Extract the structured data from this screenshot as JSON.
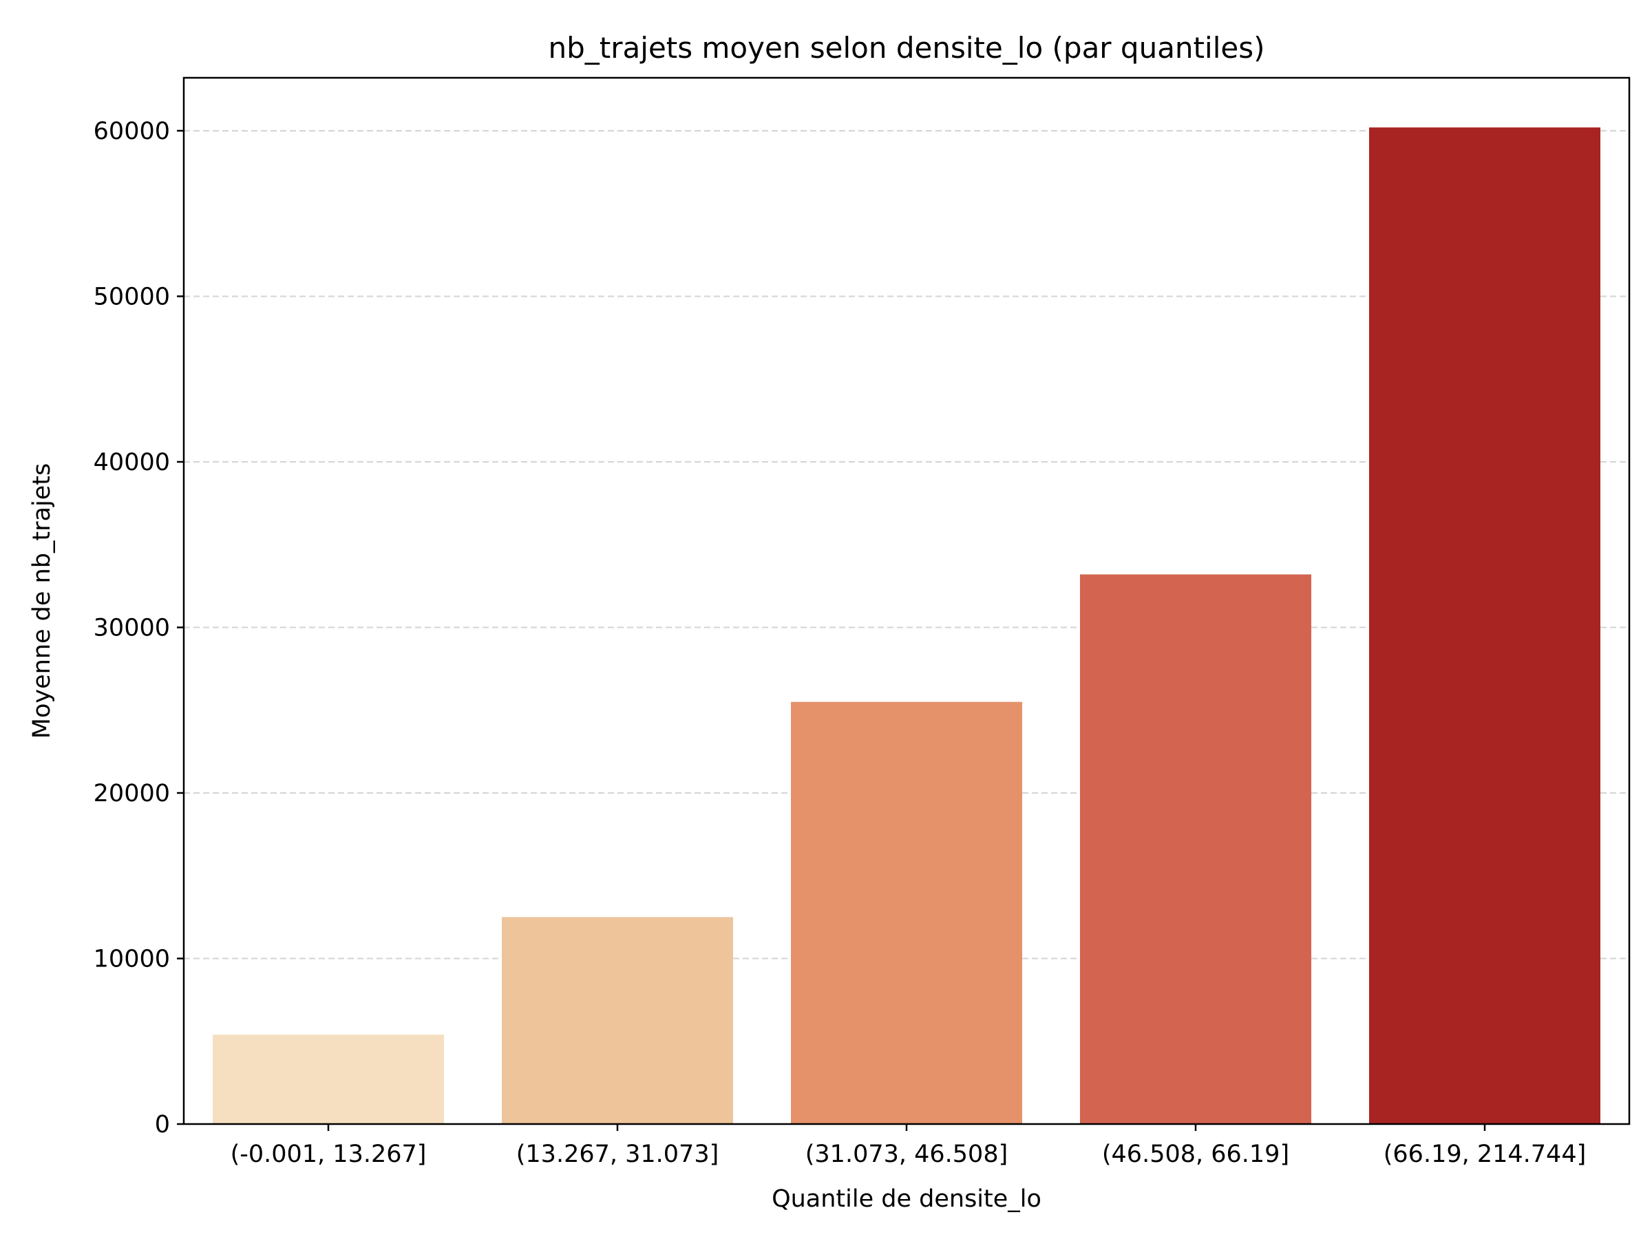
{
  "chart_data": {
    "type": "bar",
    "title": "nb_trajets moyen selon densite_lo (par quantiles)",
    "xlabel": "Quantile de densite_lo",
    "ylabel": "Moyenne de nb_trajets",
    "categories": [
      "(-0.001, 13.267]",
      "(13.267, 31.073]",
      "(31.073, 46.508]",
      "(46.508, 66.19]",
      "(66.19, 214.744]"
    ],
    "values": [
      5400,
      12500,
      25500,
      33200,
      60200
    ],
    "colors": [
      "#f5dfc0",
      "#eec49a",
      "#e5926b",
      "#d26450",
      "#a82422"
    ],
    "ylim": [
      0,
      63200
    ],
    "yticks": [
      0,
      10000,
      20000,
      30000,
      40000,
      50000,
      60000
    ],
    "ytick_labels": [
      "0",
      "10000",
      "20000",
      "30000",
      "40000",
      "50000",
      "60000"
    ],
    "grid": "y-dashed"
  }
}
